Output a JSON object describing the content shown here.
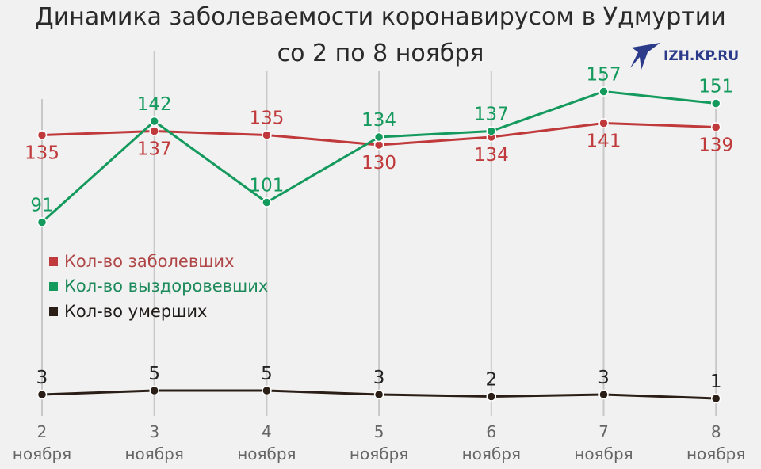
{
  "title_line1": "Динамика заболеваемости коронавирусом в Удмуртии",
  "title_line2": "со 2 по 8 ноября",
  "logo_text": "IZH.KP.RU",
  "chart_data": {
    "type": "line",
    "categories": [
      [
        "2",
        "ноября"
      ],
      [
        "3",
        "ноября"
      ],
      [
        "4",
        "ноября"
      ],
      [
        "5",
        "ноября"
      ],
      [
        "6",
        "ноября"
      ],
      [
        "7",
        "ноября"
      ],
      [
        "8",
        "ноября"
      ]
    ],
    "series": [
      {
        "name": "Кол-во заболевших",
        "color": "#c0393b",
        "values": [
          135,
          137,
          135,
          130,
          134,
          141,
          139
        ]
      },
      {
        "name": "Кол-во выздоровевших",
        "color": "#159a5e",
        "values": [
          91,
          142,
          101,
          134,
          137,
          157,
          151
        ]
      },
      {
        "name": "Кол-во умерших",
        "color": "#2a1e16",
        "values": [
          3,
          5,
          5,
          3,
          2,
          3,
          1
        ]
      }
    ],
    "grid": "vertical",
    "legend": "left-middle"
  }
}
